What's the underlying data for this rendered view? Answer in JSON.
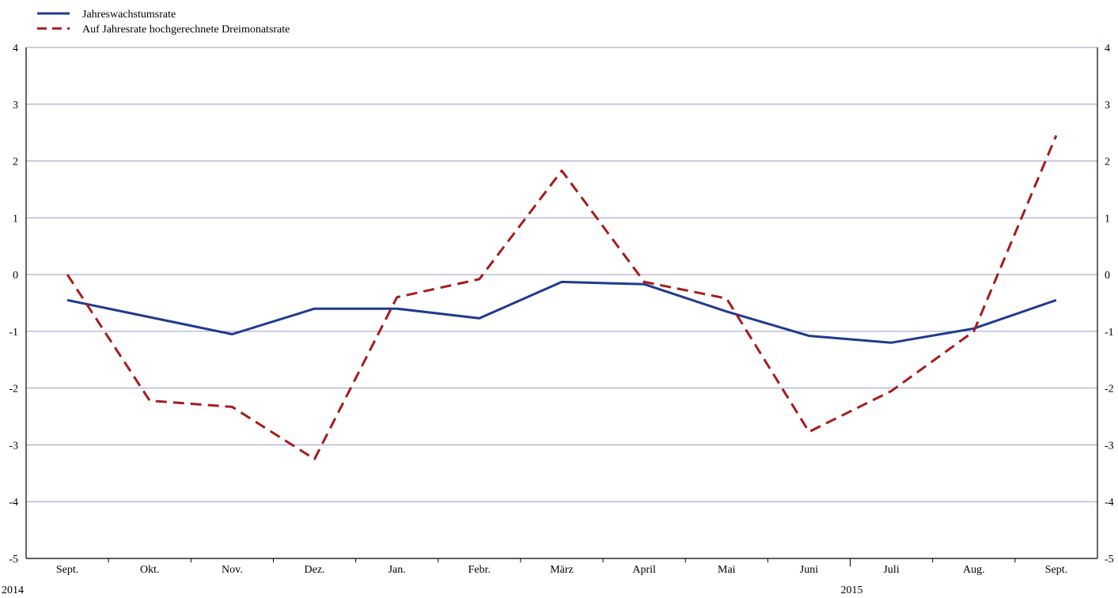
{
  "chart_data": {
    "type": "line",
    "categories": [
      "Sept.",
      "Okt.",
      "Nov.",
      "Dez.",
      "Jan.",
      "Febr.",
      "März",
      "April",
      "Mai",
      "Juni",
      "Juli",
      "Aug.",
      "Sept."
    ],
    "year_labels": [
      {
        "label": "2014",
        "category_index": 0
      },
      {
        "label": "2015",
        "category_index": 10
      }
    ],
    "ylim": [
      -5,
      4
    ],
    "yticks": [
      4,
      3,
      2,
      1,
      0,
      -1,
      -2,
      -3,
      -4,
      -5
    ],
    "grid": true,
    "legend_position": "top-left",
    "series": [
      {
        "name": "Jahreswachstumsrate",
        "color": "#1f3a8f",
        "style": "solid",
        "points": [
          {
            "x": 1.0,
            "y": -0.45
          },
          {
            "x": 3.0,
            "y": -1.05
          },
          {
            "x": 4.0,
            "y": -0.6
          },
          {
            "x": 5.0,
            "y": -0.6
          },
          {
            "x": 6.0,
            "y": -0.77
          },
          {
            "x": 7.0,
            "y": -0.13
          },
          {
            "x": 8.0,
            "y": -0.17
          },
          {
            "x": 9.0,
            "y": -0.65
          },
          {
            "x": 10.0,
            "y": -1.08
          },
          {
            "x": 11.0,
            "y": -1.2
          },
          {
            "x": 12.0,
            "y": -0.95
          },
          {
            "x": 13.0,
            "y": -0.45
          }
        ]
      },
      {
        "name": "Auf Jahresrate hochgerechnete Dreimonatsrate",
        "color": "#a61c1c",
        "style": "dashed",
        "points": [
          {
            "x": 1.0,
            "y": 0.0
          },
          {
            "x": 2.0,
            "y": -2.22
          },
          {
            "x": 3.0,
            "y": -2.33
          },
          {
            "x": 4.0,
            "y": -3.25
          },
          {
            "x": 5.0,
            "y": -0.4
          },
          {
            "x": 6.0,
            "y": -0.08
          },
          {
            "x": 7.0,
            "y": 1.83
          },
          {
            "x": 8.0,
            "y": -0.13
          },
          {
            "x": 9.0,
            "y": -0.42
          },
          {
            "x": 10.0,
            "y": -2.77
          },
          {
            "x": 11.0,
            "y": -2.05
          },
          {
            "x": 12.0,
            "y": -1.0
          },
          {
            "x": 13.0,
            "y": 2.45
          }
        ]
      }
    ]
  }
}
